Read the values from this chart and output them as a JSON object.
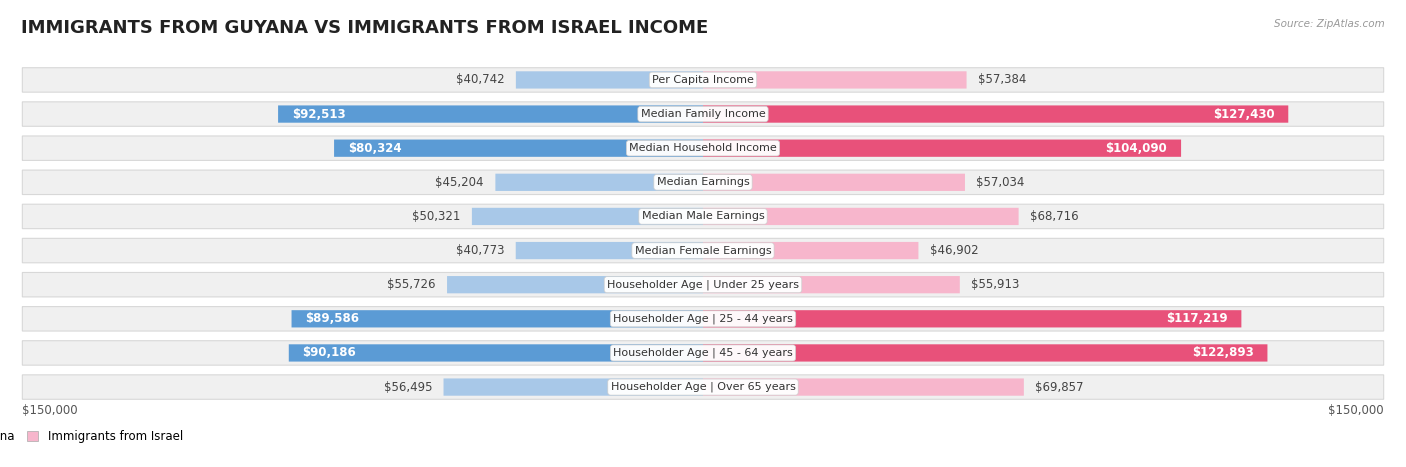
{
  "title": "IMMIGRANTS FROM GUYANA VS IMMIGRANTS FROM ISRAEL INCOME",
  "source": "Source: ZipAtlas.com",
  "categories": [
    "Per Capita Income",
    "Median Family Income",
    "Median Household Income",
    "Median Earnings",
    "Median Male Earnings",
    "Median Female Earnings",
    "Householder Age | Under 25 years",
    "Householder Age | 25 - 44 years",
    "Householder Age | 45 - 64 years",
    "Householder Age | Over 65 years"
  ],
  "guyana_values": [
    40742,
    92513,
    80324,
    45204,
    50321,
    40773,
    55726,
    89586,
    90186,
    56495
  ],
  "israel_values": [
    57384,
    127430,
    104090,
    57034,
    68716,
    46902,
    55913,
    117219,
    122893,
    69857
  ],
  "guyana_color_light": "#a8c8e8",
  "guyana_color_dark": "#5b9bd5",
  "israel_color_light": "#f7b6cc",
  "israel_color_dark": "#e8517a",
  "max_value": 150000,
  "label_color_dark": "#444444",
  "label_color_white": "#ffffff",
  "background_color": "#ffffff",
  "row_bg_color": "#f0f0f0",
  "legend_guyana": "Immigrants from Guyana",
  "legend_israel": "Immigrants from Israel",
  "xlabel_left": "$150,000",
  "xlabel_right": "$150,000",
  "title_fontsize": 13,
  "label_fontsize": 8.5,
  "category_fontsize": 8,
  "bold_threshold": 70000
}
